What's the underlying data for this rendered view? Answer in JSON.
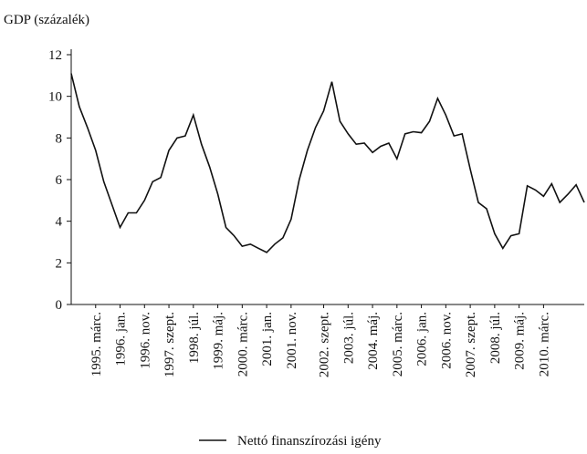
{
  "chart_data": {
    "type": "line",
    "y_label": "GDP (százalék)",
    "categories": [
      null,
      null,
      null,
      "1995. márc.",
      null,
      null,
      "1996. jan.",
      null,
      null,
      "1996. nov.",
      null,
      null,
      "1997. szept.",
      null,
      null,
      "1998. júl.",
      null,
      null,
      "1999. máj.",
      null,
      null,
      "2000. márc.",
      null,
      null,
      "2001. jan.",
      null,
      null,
      "2001. nov.",
      null,
      null,
      null,
      "2002. szept.",
      null,
      null,
      "2003. júl.",
      null,
      null,
      "2004. máj.",
      null,
      null,
      "2005. márc.",
      null,
      null,
      "2006. jan.",
      null,
      null,
      "2006. nov.",
      null,
      null,
      "2007. szept.",
      null,
      null,
      "2008. júl.",
      null,
      null,
      "2009. máj.",
      null,
      null,
      "2010. márc.",
      null,
      null,
      null,
      null,
      null
    ],
    "series": [
      {
        "name": "Nettó finanszírozási igény",
        "color": "#111111",
        "values": [
          11.1,
          9.5,
          8.5,
          7.4,
          5.9,
          4.8,
          3.7,
          4.4,
          4.4,
          5.0,
          5.9,
          6.1,
          7.4,
          8.0,
          8.1,
          9.1,
          7.7,
          6.6,
          5.3,
          3.7,
          3.3,
          2.8,
          2.9,
          2.7,
          2.5,
          2.9,
          3.2,
          4.1,
          6.0,
          7.4,
          8.5,
          9.3,
          10.7,
          8.8,
          8.2,
          7.7,
          7.75,
          7.3,
          7.6,
          7.75,
          7.0,
          8.2,
          8.3,
          8.25,
          8.8,
          9.9,
          9.1,
          8.1,
          8.2,
          6.5,
          4.9,
          4.6,
          3.4,
          2.7,
          3.3,
          3.4,
          5.7,
          5.5,
          5.2,
          5.8,
          4.9,
          5.3,
          5.75,
          4.9
        ]
      }
    ],
    "ylim": [
      0,
      12
    ],
    "yticks": [
      0,
      2,
      4,
      6,
      8,
      10,
      12
    ],
    "legend": "bottom"
  }
}
